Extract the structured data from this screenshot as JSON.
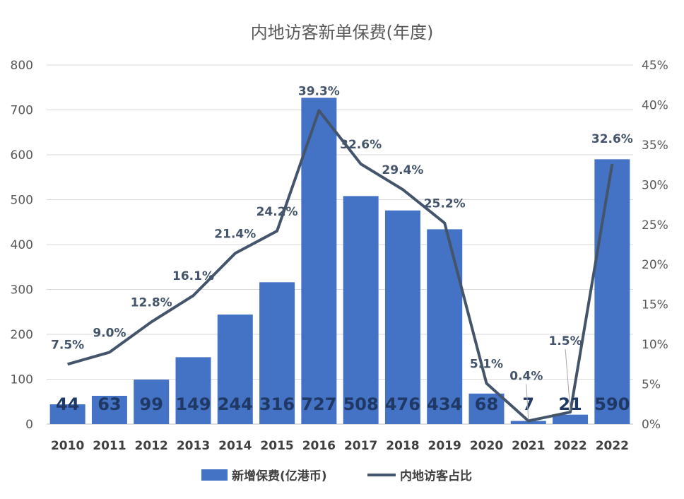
{
  "chart_data": {
    "type": "bar",
    "title": "内地访客新单保费(年度)",
    "categories": [
      "2010",
      "2011",
      "2012",
      "2013",
      "2014",
      "2015",
      "2016",
      "2017",
      "2018",
      "2019",
      "2020",
      "2021",
      "2022",
      "2022"
    ],
    "series": [
      {
        "name": "新增保费(亿港币)",
        "type": "bar",
        "axis": "left",
        "color": "#4472C4",
        "values": [
          44,
          63,
          99,
          149,
          244,
          316,
          727,
          508,
          476,
          434,
          68,
          7,
          21,
          590
        ],
        "labels": [
          "44",
          "63",
          "99",
          "149",
          "244",
          "316",
          "727",
          "508",
          "476",
          "434",
          "68",
          "7",
          "21",
          "590"
        ]
      },
      {
        "name": "内地访客占比",
        "type": "line",
        "axis": "right",
        "color": "#44546A",
        "values": [
          7.5,
          9.0,
          12.8,
          16.1,
          21.4,
          24.2,
          39.3,
          32.6,
          29.4,
          25.2,
          5.1,
          0.4,
          1.5,
          32.6
        ],
        "labels": [
          "7.5%",
          "9.0%",
          "12.8%",
          "16.1%",
          "21.4%",
          "24.2%",
          "39.3%",
          "32.6%",
          "29.4%",
          "25.2%",
          "5.1%",
          "0.4%",
          "1.5%",
          "32.6%"
        ]
      }
    ],
    "y_left": {
      "min": 0,
      "max": 800,
      "ticks": [
        "0",
        "100",
        "200",
        "300",
        "400",
        "500",
        "600",
        "700",
        "800"
      ]
    },
    "y_right": {
      "min": 0,
      "max": 45,
      "ticks": [
        "0%",
        "5%",
        "10%",
        "15%",
        "20%",
        "25%",
        "30%",
        "35%",
        "40%",
        "45%"
      ]
    },
    "grid": true,
    "legend_position": "bottom"
  }
}
